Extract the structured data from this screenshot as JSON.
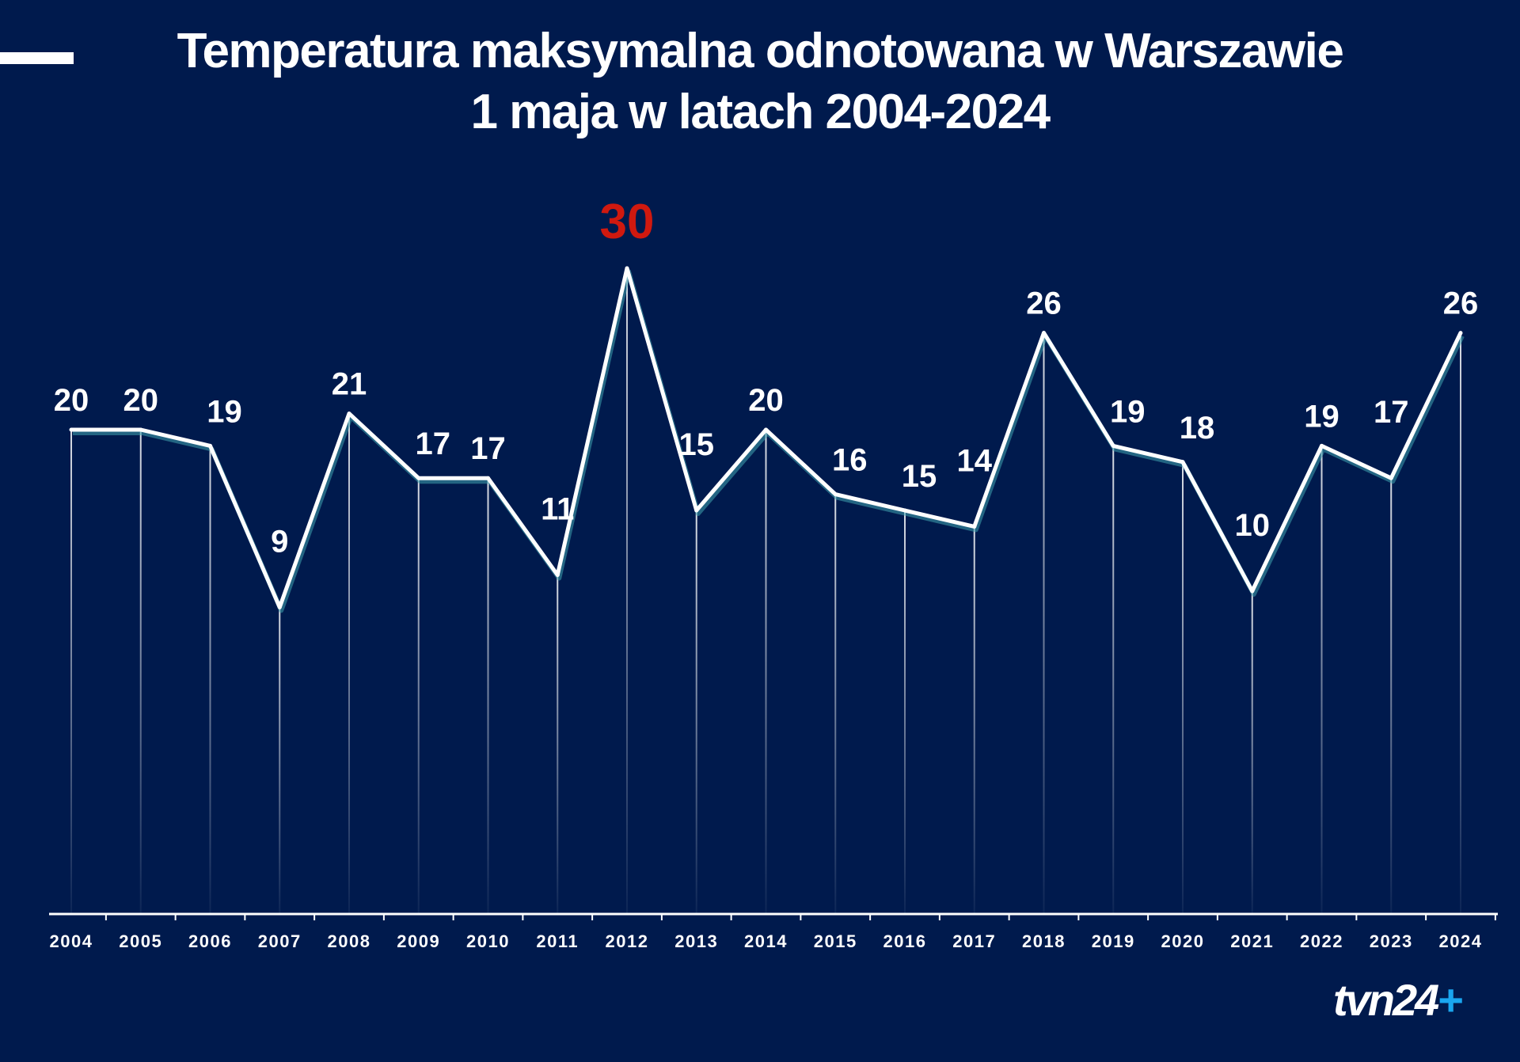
{
  "title": {
    "line1": "Temperatura maksymalna odnotowana w Warszawie",
    "line2": "1 maja w latach 2004-2024"
  },
  "chart_data": {
    "type": "line",
    "categories": [
      "2004",
      "2005",
      "2006",
      "2007",
      "2008",
      "2009",
      "2010",
      "2011",
      "2012",
      "2013",
      "2014",
      "2015",
      "2016",
      "2017",
      "2018",
      "2019",
      "2020",
      "2021",
      "2022",
      "2023",
      "2024"
    ],
    "values": [
      20,
      20,
      19,
      9,
      21,
      17,
      17,
      11,
      30,
      15,
      20,
      16,
      15,
      14,
      26,
      19,
      18,
      10,
      19,
      17,
      26
    ],
    "highlight": {
      "category": "2012",
      "value": 30,
      "color": "#d0190f"
    },
    "line_color": "#ffffff",
    "ylim": [
      -10,
      30
    ],
    "grid": false,
    "legend": "none"
  },
  "logo": {
    "text": "tvn24",
    "plus": "+"
  }
}
